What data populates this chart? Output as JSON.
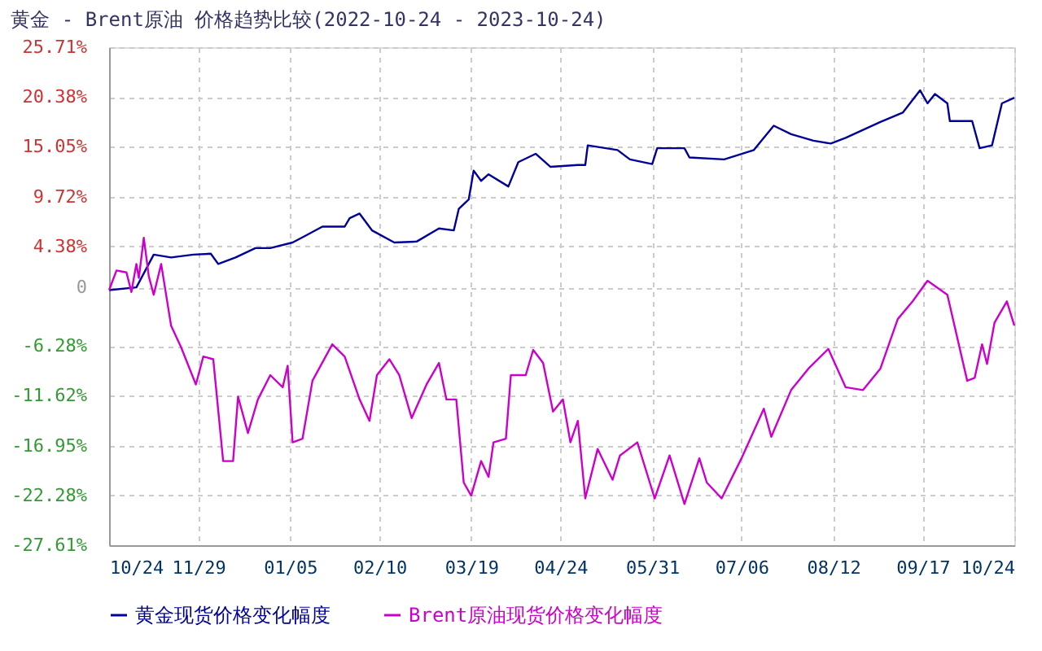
{
  "chart_data": {
    "type": "line",
    "title": "黄金 - Brent原油 价格趋势比较(2022-10-24 - 2023-10-24)",
    "series": [
      {
        "name": "黄金现货价格变化幅度",
        "color": "#000099",
        "x": [
          "2022-10-24",
          "2022-11-04",
          "2022-11-11",
          "2022-11-18",
          "2022-11-27",
          "2022-12-04",
          "2022-12-07",
          "2022-12-14",
          "2022-12-22",
          "2022-12-28",
          "2023-01-06",
          "2023-01-11",
          "2023-01-18",
          "2023-01-27",
          "2023-01-29",
          "2023-02-02",
          "2023-02-07",
          "2023-02-16",
          "2023-02-25",
          "2023-03-06",
          "2023-03-12",
          "2023-03-14",
          "2023-03-18",
          "2023-03-20",
          "2023-03-23",
          "2023-03-26",
          "2023-04-03",
          "2023-04-07",
          "2023-04-14",
          "2023-04-20",
          "2023-05-01",
          "2023-05-04",
          "2023-05-05",
          "2023-05-17",
          "2023-05-22",
          "2023-05-31",
          "2023-06-02",
          "2023-06-13",
          "2023-06-15",
          "2023-06-29",
          "2023-07-11",
          "2023-07-14",
          "2023-07-19",
          "2023-07-26",
          "2023-08-04",
          "2023-08-11",
          "2023-08-17",
          "2023-08-31",
          "2023-09-09",
          "2023-09-16",
          "2023-09-19",
          "2023-09-22",
          "2023-09-27",
          "2023-09-28",
          "2023-10-07",
          "2023-10-10",
          "2023-10-15",
          "2023-10-19",
          "2023-10-24"
        ],
        "values": [
          -0.3,
          0,
          3.5,
          3.2,
          3.5,
          3.6,
          2.5,
          3.2,
          4.2,
          4.2,
          4.8,
          5.5,
          6.5,
          6.5,
          7.4,
          7.9,
          6.1,
          4.8,
          4.9,
          6.3,
          6.1,
          8.4,
          9.4,
          12.5,
          11.4,
          12.1,
          10.8,
          13.4,
          14.3,
          12.9,
          13.1,
          13.1,
          15.2,
          14.7,
          13.7,
          13.2,
          14.9,
          14.9,
          13.9,
          13.7,
          14.7,
          15.7,
          17.3,
          16.4,
          15.7,
          15.4,
          16.0,
          17.7,
          18.7,
          21.1,
          19.7,
          20.7,
          19.7,
          17.8,
          17.8,
          14.9,
          15.2,
          19.7,
          20.3
        ]
      },
      {
        "name": "Brent原油现货价格变化幅度",
        "color": "#cc00cc",
        "x": [
          "2022-10-24",
          "2022-10-27",
          "2022-10-31",
          "2022-11-02",
          "2022-11-04",
          "2022-11-05",
          "2022-11-07",
          "2022-11-09",
          "2022-11-11",
          "2022-11-14",
          "2022-11-18",
          "2022-11-22",
          "2022-11-28",
          "2022-12-01",
          "2022-12-05",
          "2022-12-09",
          "2022-12-13",
          "2022-12-15",
          "2022-12-19",
          "2022-12-23",
          "2022-12-28",
          "2023-01-02",
          "2023-01-04",
          "2023-01-06",
          "2023-01-10",
          "2023-01-14",
          "2023-01-22",
          "2023-01-27",
          "2023-02-02",
          "2023-02-06",
          "2023-02-09",
          "2023-02-14",
          "2023-02-18",
          "2023-02-23",
          "2023-03-01",
          "2023-03-06",
          "2023-03-09",
          "2023-03-13",
          "2023-03-16",
          "2023-03-19",
          "2023-03-23",
          "2023-03-26",
          "2023-03-28",
          "2023-04-02",
          "2023-04-04",
          "2023-04-10",
          "2023-04-13",
          "2023-04-17",
          "2023-04-21",
          "2023-04-25",
          "2023-04-28",
          "2023-05-01",
          "2023-05-04",
          "2023-05-09",
          "2023-05-15",
          "2023-05-18",
          "2023-05-25",
          "2023-06-01",
          "2023-06-07",
          "2023-06-13",
          "2023-06-19",
          "2023-06-22",
          "2023-06-28",
          "2023-07-06",
          "2023-07-15",
          "2023-07-18",
          "2023-07-26",
          "2023-08-02",
          "2023-08-10",
          "2023-08-17",
          "2023-08-24",
          "2023-08-31",
          "2023-09-07",
          "2023-09-13",
          "2023-09-19",
          "2023-09-27",
          "2023-10-05",
          "2023-10-08",
          "2023-10-11",
          "2023-10-13",
          "2023-10-16",
          "2023-10-21",
          "2023-10-24"
        ],
        "values": [
          -0.3,
          1.8,
          1.6,
          -0.5,
          2.5,
          1.0,
          5.3,
          1.2,
          -0.8,
          2.5,
          -4.1,
          -6.4,
          -10.4,
          -7.4,
          -7.7,
          -18.6,
          -18.6,
          -11.7,
          -15.6,
          -12.0,
          -9.4,
          -10.7,
          -8.4,
          -16.6,
          -16.2,
          -10.0,
          -6.1,
          -7.4,
          -12.0,
          -14.3,
          -9.4,
          -7.7,
          -9.4,
          -14.0,
          -10.4,
          -8.1,
          -12.0,
          -12.0,
          -20.9,
          -22.3,
          -18.6,
          -20.3,
          -16.6,
          -16.2,
          -9.4,
          -9.4,
          -6.7,
          -8.1,
          -13.3,
          -12.0,
          -16.6,
          -14.3,
          -22.6,
          -17.3,
          -20.6,
          -18.0,
          -16.6,
          -22.6,
          -18.0,
          -23.2,
          -18.3,
          -20.9,
          -22.6,
          -18.3,
          -13.0,
          -16.0,
          -11.0,
          -8.7,
          -6.6,
          -10.7,
          -11.0,
          -8.7,
          -3.4,
          -1.5,
          0.7,
          -0.8,
          -10.0,
          -9.7,
          -6.1,
          -8.2,
          -3.8,
          -1.5,
          -4.1
        ]
      }
    ],
    "xlim": [
      "2022-10-24",
      "2023-10-24"
    ],
    "xticks": [
      {
        "value": "2022-10-24",
        "label": "10/24"
      },
      {
        "value": "2022-11-29",
        "label": "11/29"
      },
      {
        "value": "2023-01-05",
        "label": "01/05"
      },
      {
        "value": "2023-02-10",
        "label": "02/10"
      },
      {
        "value": "2023-03-19",
        "label": "03/19"
      },
      {
        "value": "2023-04-24",
        "label": "04/24"
      },
      {
        "value": "2023-05-31",
        "label": "05/31"
      },
      {
        "value": "2023-07-06",
        "label": "07/06"
      },
      {
        "value": "2023-08-12",
        "label": "08/12"
      },
      {
        "value": "2023-09-17",
        "label": "09/17"
      },
      {
        "value": "2023-10-24",
        "label": "10/24"
      }
    ],
    "ylim": [
      -27.61,
      25.71
    ],
    "yticks": [
      {
        "value": -27.61,
        "label": "-27.61%"
      },
      {
        "value": -22.28,
        "label": "-22.28%"
      },
      {
        "value": -16.95,
        "label": "-16.95%"
      },
      {
        "value": -11.62,
        "label": "-11.62%"
      },
      {
        "value": -6.28,
        "label": "-6.28%"
      },
      {
        "value": 0,
        "label": "0"
      },
      {
        "value": 4.38,
        "label": "4.38%"
      },
      {
        "value": 9.72,
        "label": "9.72%"
      },
      {
        "value": 15.05,
        "label": "15.05%"
      },
      {
        "value": 20.38,
        "label": "20.38%"
      },
      {
        "value": 25.71,
        "label": "25.71%"
      }
    ],
    "grid": true,
    "legend": "bottom",
    "line_style": "solid",
    "marker": "none"
  }
}
